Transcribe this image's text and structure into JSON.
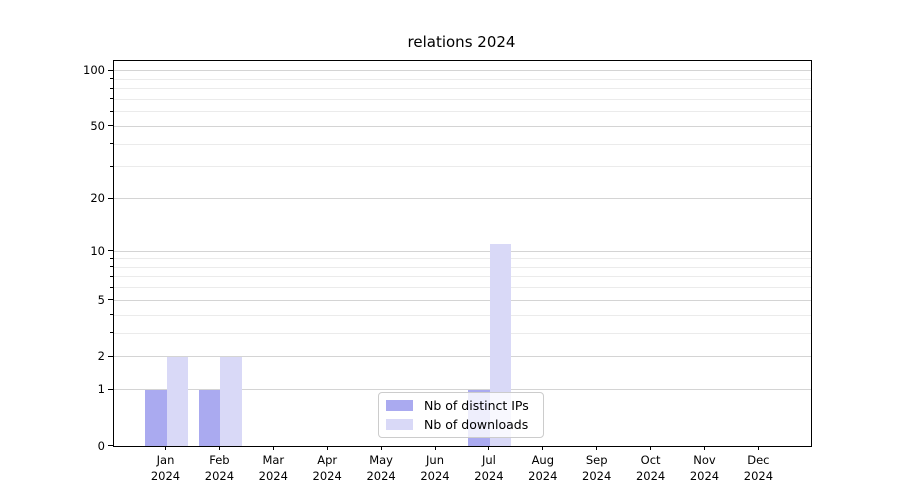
{
  "chart_data": {
    "type": "bar",
    "title": "relations 2024",
    "categories": [
      "Jan",
      "Feb",
      "Mar",
      "Apr",
      "May",
      "Jun",
      "Jul",
      "Aug",
      "Sep",
      "Oct",
      "Nov",
      "Dec"
    ],
    "x_year_line": "2024",
    "series": [
      {
        "name": "Nb of distinct IPs",
        "color": "#aaaaf0",
        "values": [
          1,
          1,
          0,
          0,
          0,
          0,
          1,
          0,
          0,
          0,
          0,
          0
        ]
      },
      {
        "name": "Nb of downloads",
        "color": "#d9d9f7",
        "values": [
          2,
          2,
          0,
          0,
          0,
          0,
          11,
          0,
          0,
          0,
          0,
          0
        ]
      }
    ],
    "y_scale": "log1p",
    "y_axis": {
      "ticks": [
        0,
        1,
        2,
        5,
        10,
        20,
        50,
        100
      ],
      "minor_gridlines": [
        3,
        4,
        6,
        7,
        8,
        9,
        30,
        40,
        60,
        70,
        80,
        90
      ],
      "max": 113
    },
    "xlabel": "",
    "ylabel": "",
    "grid": true,
    "legend": {
      "position": "lower center"
    }
  },
  "colors": {
    "background": "#ffffff",
    "bar_distinct_ips": "#aaaaf0",
    "bar_downloads": "#d9d9f7",
    "grid_major": "#d4d4d4",
    "grid_minor": "#ebebeb",
    "axis": "#000000",
    "legend_border": "#cccccc",
    "legend_background": "rgba(255,255,255,0.8)"
  }
}
